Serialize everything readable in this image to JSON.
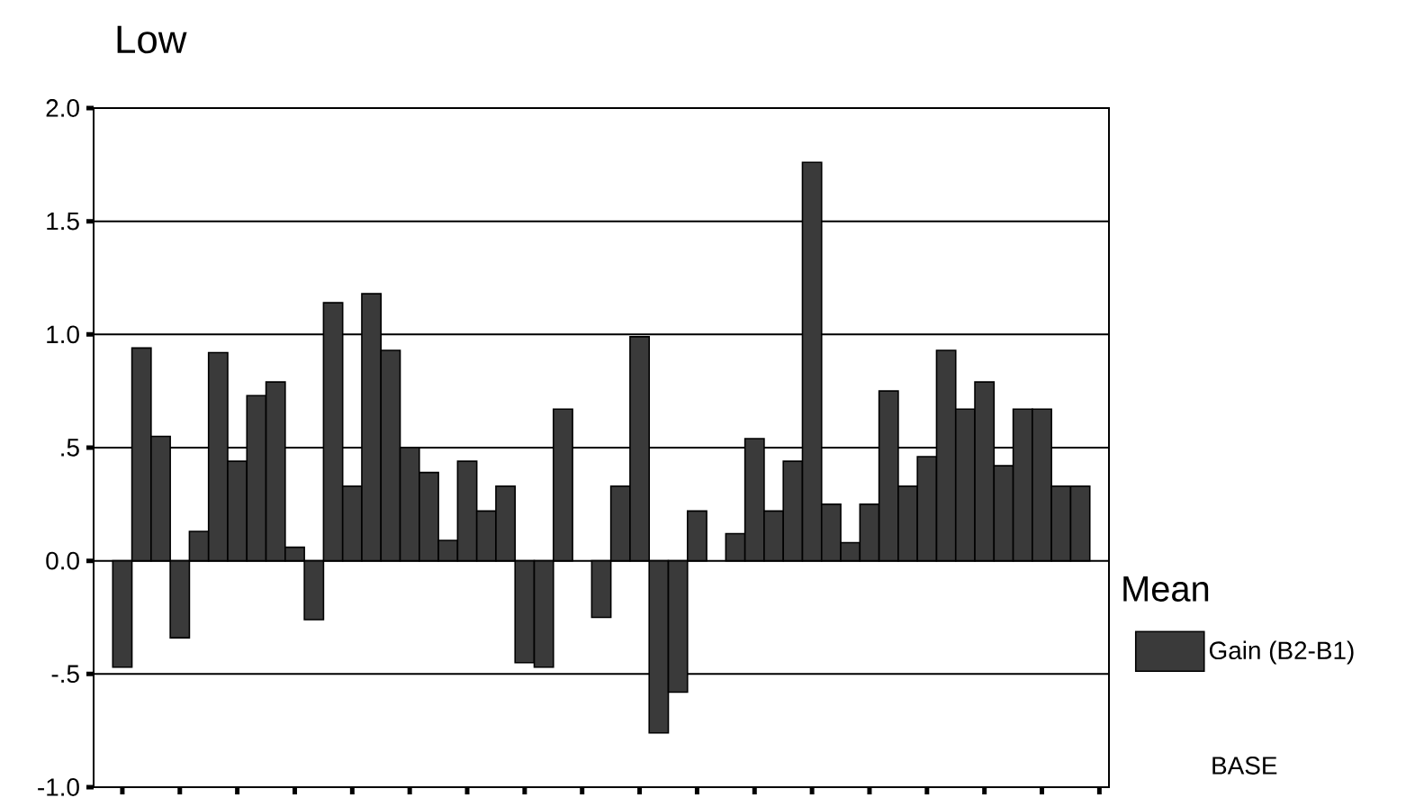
{
  "chart_data": {
    "type": "bar",
    "title": "Low",
    "annotations": [
      "Mean",
      "BASE"
    ],
    "categories": [
      null,
      null,
      null,
      null,
      null,
      null,
      null,
      null,
      null,
      null,
      null,
      null,
      null,
      null,
      null,
      null,
      null,
      null,
      null,
      null,
      null,
      null,
      null,
      null,
      null,
      null,
      null,
      null,
      null,
      null,
      null,
      null,
      null,
      null,
      null,
      null,
      null,
      null,
      null,
      null,
      null,
      null,
      null,
      null,
      null,
      null,
      null,
      null,
      null,
      null,
      null,
      null,
      null
    ],
    "series": [
      {
        "name": "Gain (B2-B1)",
        "color": "#3a3a3a",
        "values": [
          null,
          -0.47,
          0.94,
          0.55,
          -0.34,
          0.13,
          0.92,
          0.44,
          0.73,
          0.79,
          0.06,
          -0.26,
          1.14,
          0.33,
          1.18,
          0.93,
          0.5,
          0.39,
          0.09,
          0.44,
          0.22,
          0.33,
          -0.45,
          -0.47,
          0.67,
          null,
          -0.25,
          0.33,
          0.99,
          -0.76,
          -0.58,
          0.22,
          null,
          0.12,
          0.54,
          0.22,
          0.44,
          1.76,
          0.25,
          0.08,
          0.25,
          0.75,
          0.33,
          0.46,
          0.93,
          0.67,
          0.79,
          0.42,
          0.67,
          0.67,
          0.33,
          0.33,
          null
        ]
      }
    ],
    "ylim": [
      -1.0,
      2.0
    ],
    "yticks": [
      {
        "value": -1.0,
        "label": "-1.0"
      },
      {
        "value": -0.5,
        "label": "-.5"
      },
      {
        "value": 0,
        "label": "0.0"
      },
      {
        "value": 0.5,
        "label": ".5"
      },
      {
        "value": 1.0,
        "label": "1.0"
      },
      {
        "value": 1.5,
        "label": "1.5"
      },
      {
        "value": 2.0,
        "label": "2.0"
      }
    ],
    "grid": "y",
    "legend": "bottom right"
  }
}
